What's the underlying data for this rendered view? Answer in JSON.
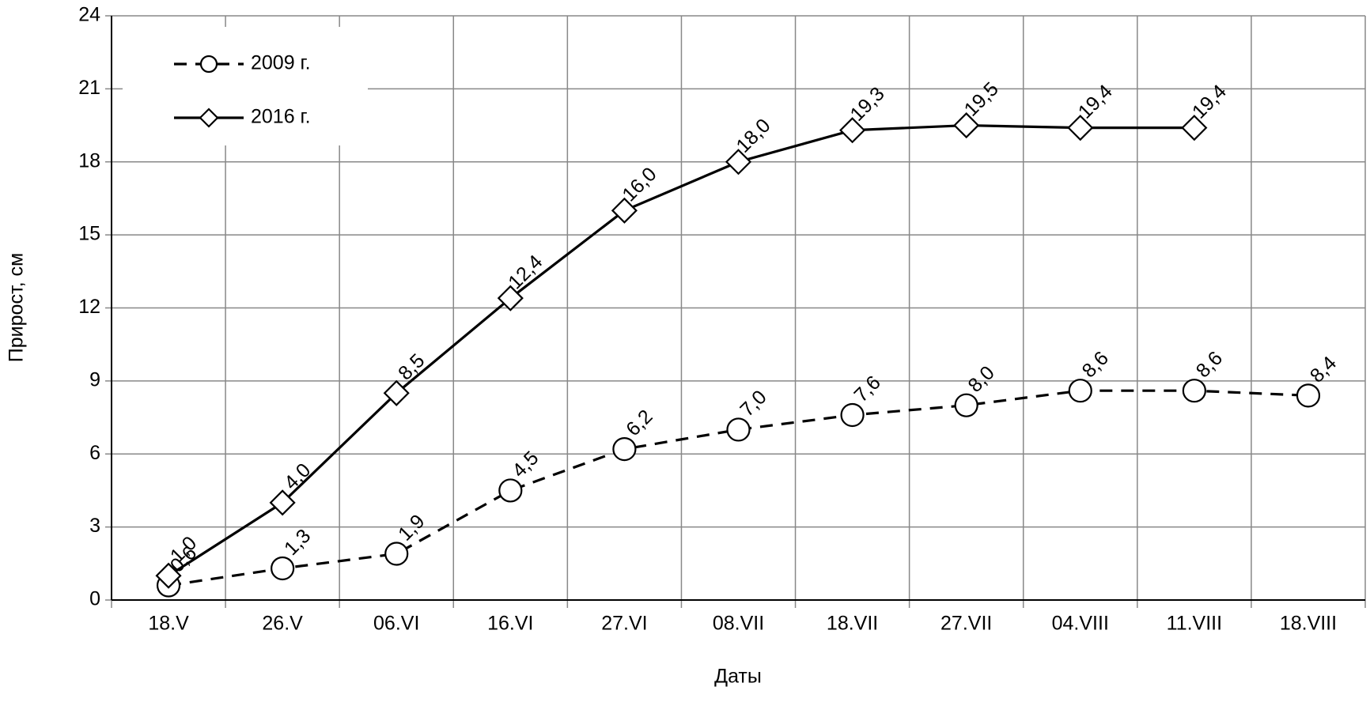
{
  "chart_data": {
    "type": "line",
    "xlabel": "Даты",
    "ylabel": "Прирост,  см",
    "categories": [
      "18.V",
      "26.V",
      "06.VI",
      "16.VI",
      "27.VI",
      "08.VII",
      "18.VII",
      "27.VII",
      "04.VIII",
      "11.VIII",
      "18.VIII"
    ],
    "series": [
      {
        "name": "2009 г.",
        "color": "#000000",
        "dash": true,
        "marker": "circle",
        "values": [
          0.6,
          1.3,
          1.9,
          4.5,
          6.2,
          7.0,
          7.6,
          8.0,
          8.6,
          8.6,
          8.4
        ],
        "value_labels": [
          "0,6",
          "1,3",
          "1,9",
          "4,5",
          "6,2",
          "7,0",
          "7,6",
          "8,0",
          "8,6",
          "8,6",
          "8,4"
        ]
      },
      {
        "name": "2016 г.",
        "color": "#000000",
        "dash": false,
        "marker": "diamond",
        "values": [
          1.0,
          4.0,
          8.5,
          12.4,
          16.0,
          18.0,
          19.3,
          19.5,
          19.4,
          19.4,
          null
        ],
        "value_labels": [
          "1,0",
          "4,0",
          "8,5",
          "12,4",
          "16,0",
          "18,0",
          "19,3",
          "19,5",
          "19,4",
          "19,4",
          null
        ]
      }
    ],
    "ylim": [
      0,
      24
    ],
    "yticks": [
      0,
      3,
      6,
      9,
      12,
      15,
      18,
      21,
      24
    ],
    "grid": true,
    "legend": "upper left"
  }
}
